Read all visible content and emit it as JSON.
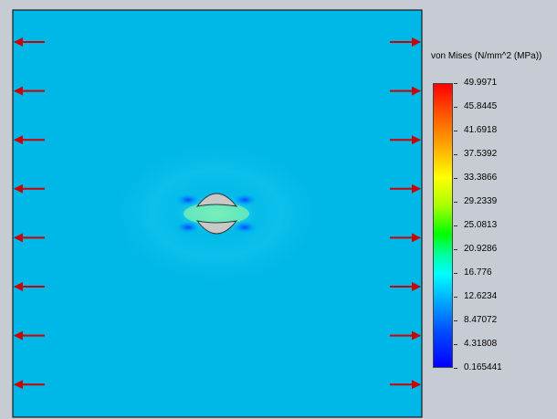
{
  "window": {
    "background": "#c7ccd4"
  },
  "model": {
    "plate_color": "#00b8e8",
    "hole_fill": "#c8c8c8",
    "load_arrow_color": "#cc0000",
    "load_arrow_count_per_side": 8
  },
  "legend": {
    "title": "von Mises (N/mm^2 (MPa))",
    "values": [
      "49.9971",
      "45.8445",
      "41.6918",
      "37.5392",
      "33.3866",
      "29.2339",
      "25.0813",
      "20.9286",
      "16.776",
      "12.6234",
      "8.47072",
      "4.31808",
      "0.165441"
    ],
    "scale_colors": [
      "#ff0000",
      "#ff9900",
      "#ffff00",
      "#00ff00",
      "#00ffff",
      "#0050ff",
      "#0000ff"
    ]
  }
}
